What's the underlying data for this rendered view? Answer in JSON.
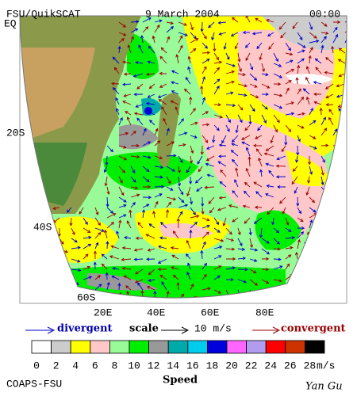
{
  "header": {
    "source": "FSU/QuikSCAT",
    "date": "9 March 2004",
    "time": "00:00"
  },
  "latitude_labels": [
    "EQ",
    "20S",
    "40S",
    "60S"
  ],
  "longitude_labels": [
    "20E",
    "40E",
    "60E",
    "80E"
  ],
  "legend": {
    "divergent": "divergent",
    "scale": "scale",
    "scale_value": "10 m/s",
    "convergent": "convergent"
  },
  "colorbar": {
    "labels": [
      0,
      2,
      4,
      6,
      8,
      10,
      12,
      14,
      16,
      18,
      20,
      22,
      24,
      26,
      28
    ],
    "unit": "m/s",
    "colors": [
      "#ffffff",
      "#cccccc",
      "#ffff00",
      "#ffc8c8",
      "#98fb98",
      "#00ee00",
      "#999999",
      "#00aaaa",
      "#00ccee",
      "#0000dd",
      "#ff66ff",
      "#b19cf0",
      "#ff0000",
      "#cc3300",
      "#000000"
    ],
    "title": "Speed"
  },
  "footer": {
    "left": "COAPS-FSU",
    "right": "Yan Gu"
  }
}
